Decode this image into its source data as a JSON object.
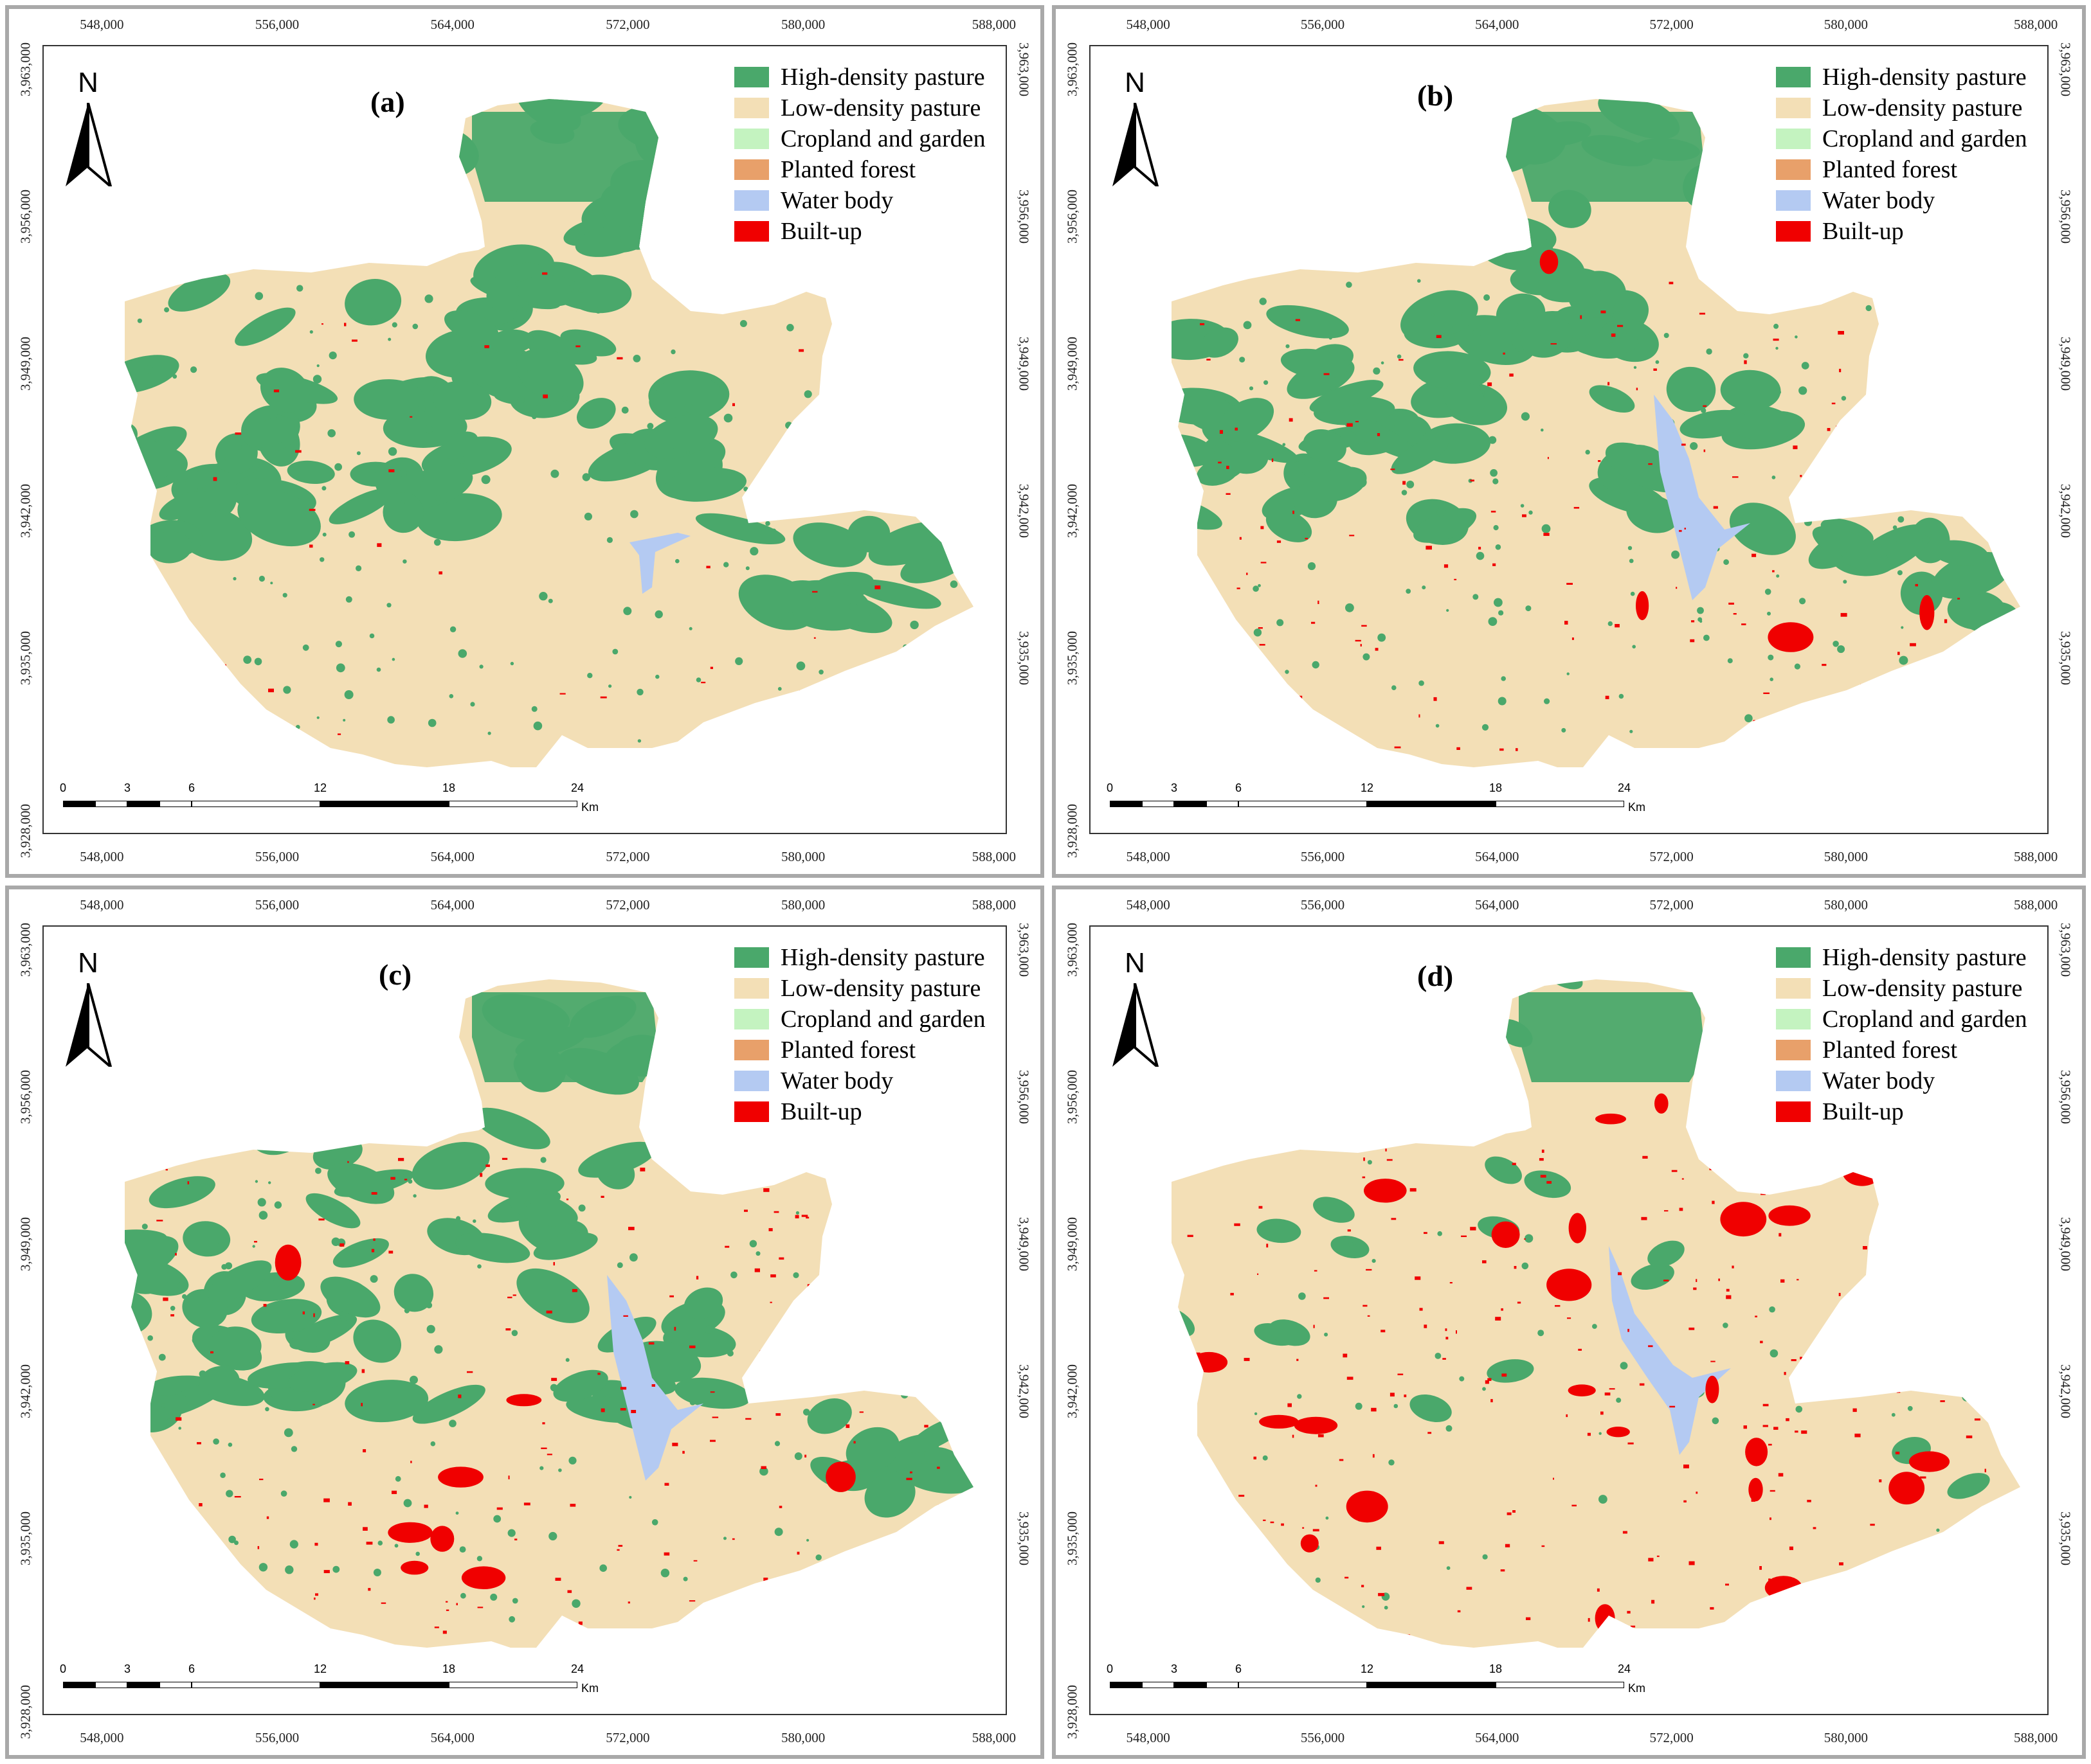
{
  "legend": [
    {
      "label": "High-density pasture",
      "color": "#4aa86b"
    },
    {
      "label": "Low-density pasture",
      "color": "#f3dfb6"
    },
    {
      "label": "Cropland and garden",
      "color": "#c4f3c0"
    },
    {
      "label": "Planted forest",
      "color": "#e8a06a"
    },
    {
      "label": "Water body",
      "color": "#b4caf2"
    },
    {
      "label": "Built-up",
      "color": "#f00000"
    }
  ],
  "x_ticks": [
    "548,000",
    "556,000",
    "564,000",
    "572,000",
    "580,000",
    "588,000"
  ],
  "y_ticks": [
    "3,963,000",
    "3,956,000",
    "3,949,000",
    "3,942,000",
    "3,935,000",
    "3,928,000"
  ],
  "north_label": "N",
  "scale": {
    "ticks": [
      "0",
      "3",
      "6",
      "12",
      "18",
      "24"
    ],
    "unit": "Km"
  },
  "panels": [
    {
      "id": "a",
      "label": "(a)"
    },
    {
      "id": "b",
      "label": "(b)"
    },
    {
      "id": "c",
      "label": "(c)"
    },
    {
      "id": "d",
      "label": "(d)"
    }
  ],
  "colors": {
    "green": "#4aa86b",
    "beige": "#f3dfb6",
    "red": "#f00000",
    "water": "#b4caf2",
    "border": "#a9a9a9"
  }
}
